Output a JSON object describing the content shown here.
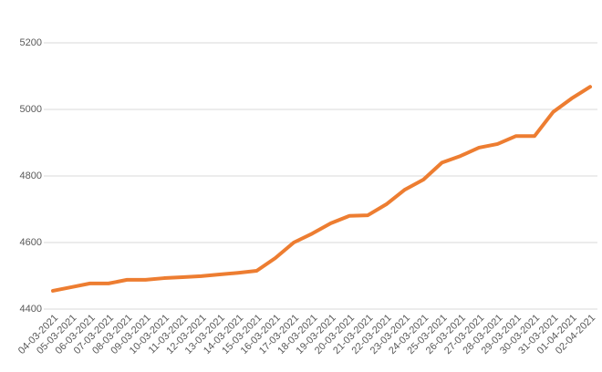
{
  "chart_data": {
    "type": "line",
    "categories": [
      "04-03-2021",
      "05-03-2021",
      "06-03-2021",
      "07-03-2021",
      "08-03-2021",
      "09-03-2021",
      "10-03-2021",
      "11-03-2021",
      "12-03-2021",
      "13-03-2021",
      "14-03-2021",
      "15-03-2021",
      "16-03-2021",
      "17-03-2021",
      "18-03-2021",
      "19-03-2021",
      "20-03-2021",
      "21-03-2021",
      "22-03-2021",
      "23-03-2021",
      "24-03-2021",
      "25-03-2021",
      "26-03-2021",
      "27-03-2021",
      "28-03-2021",
      "29-03-2021",
      "30-03-2021",
      "31-03-2021",
      "01-04-2021",
      "02-04-2021"
    ],
    "values": [
      4455,
      4466,
      4477,
      4477,
      4488,
      4488,
      4493,
      4496,
      4499,
      4504,
      4509,
      4515,
      4553,
      4600,
      4627,
      4658,
      4680,
      4682,
      4715,
      4759,
      4789,
      4840,
      4860,
      4885,
      4896,
      4920,
      4920,
      4992,
      5033,
      5068
    ],
    "color": "#ed7d31",
    "ylim": [
      4400,
      5200
    ],
    "yticks": [
      4400,
      4600,
      4800,
      5000,
      5200
    ],
    "grid": true
  }
}
